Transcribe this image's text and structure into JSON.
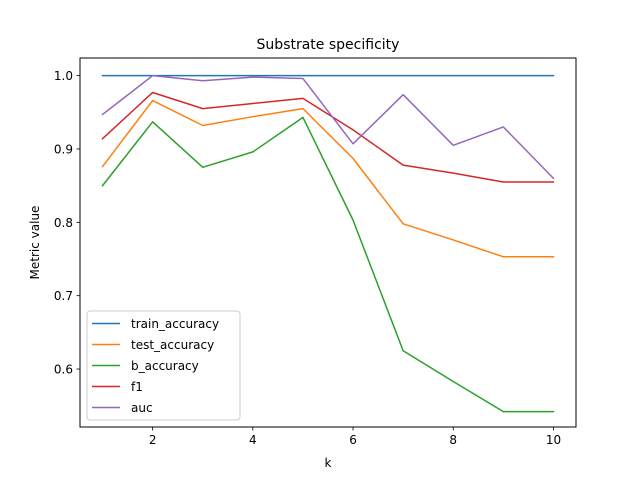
{
  "chart_data": {
    "type": "line",
    "title": "Substrate specificity",
    "xlabel": "k",
    "ylabel": "Metric value",
    "x": [
      1,
      2,
      3,
      4,
      5,
      6,
      7,
      8,
      9,
      10
    ],
    "xlim": [
      0.55,
      10.45
    ],
    "ylim": [
      0.521,
      1.024
    ],
    "xticks": [
      2,
      4,
      6,
      8,
      10
    ],
    "yticks": [
      0.6,
      0.7,
      0.8,
      0.9,
      1.0
    ],
    "ytick_labels": [
      "0.6",
      "0.7",
      "0.8",
      "0.9",
      "1.0"
    ],
    "grid": false,
    "legend_position": "lower-left",
    "series": [
      {
        "name": "train_accuracy",
        "color": "#1f77b4",
        "values": [
          1.0,
          1.0,
          1.0,
          1.0,
          1.0,
          1.0,
          1.0,
          1.0,
          1.0,
          1.0
        ]
      },
      {
        "name": "test_accuracy",
        "color": "#ff7f0e",
        "values": [
          0.876,
          0.966,
          0.932,
          0.944,
          0.955,
          0.887,
          0.798,
          0.776,
          0.753,
          0.753
        ]
      },
      {
        "name": "b_accuracy",
        "color": "#2ca02c",
        "values": [
          0.85,
          0.937,
          0.875,
          0.896,
          0.943,
          0.803,
          0.625,
          0.583,
          0.542,
          0.542
        ]
      },
      {
        "name": "f1",
        "color": "#d62728",
        "values": [
          0.914,
          0.977,
          0.955,
          0.962,
          0.969,
          0.926,
          0.878,
          0.867,
          0.855,
          0.855
        ]
      },
      {
        "name": "auc",
        "color": "#9467bd",
        "values": [
          0.947,
          1.0,
          0.993,
          0.998,
          0.996,
          0.907,
          0.974,
          0.905,
          0.93,
          0.86
        ]
      }
    ]
  }
}
